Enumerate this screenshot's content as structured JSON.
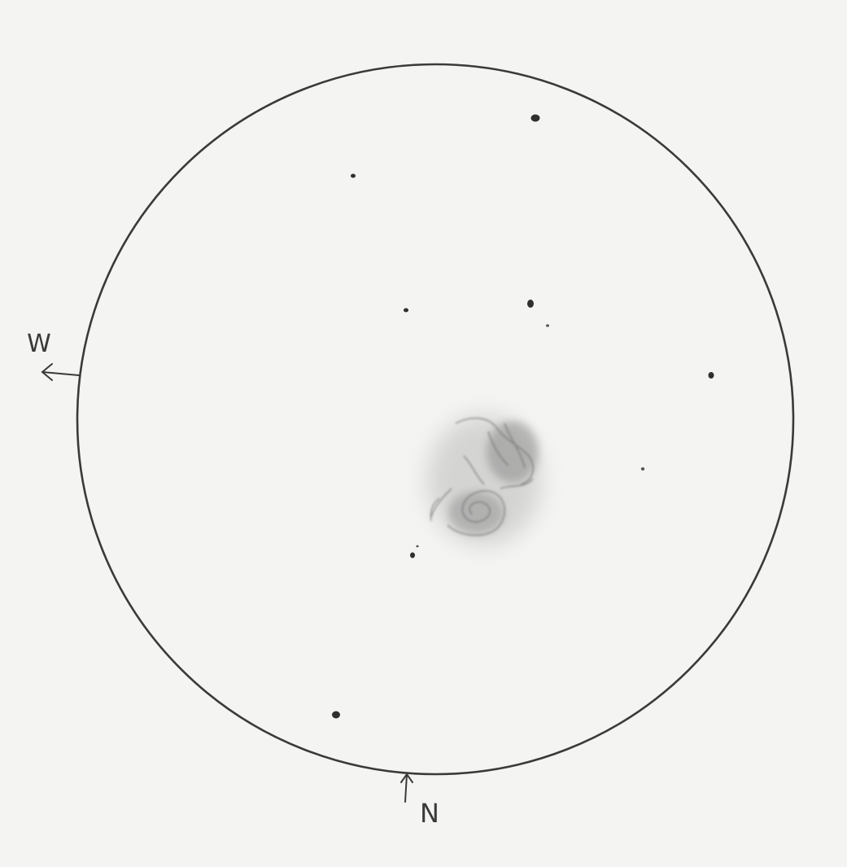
{
  "sketch": {
    "direction_labels": {
      "west": "W",
      "north": "N"
    },
    "colors": {
      "paper": "#f4f4f2",
      "pencil": "#333333",
      "nebula": "#8a8a8a"
    }
  }
}
